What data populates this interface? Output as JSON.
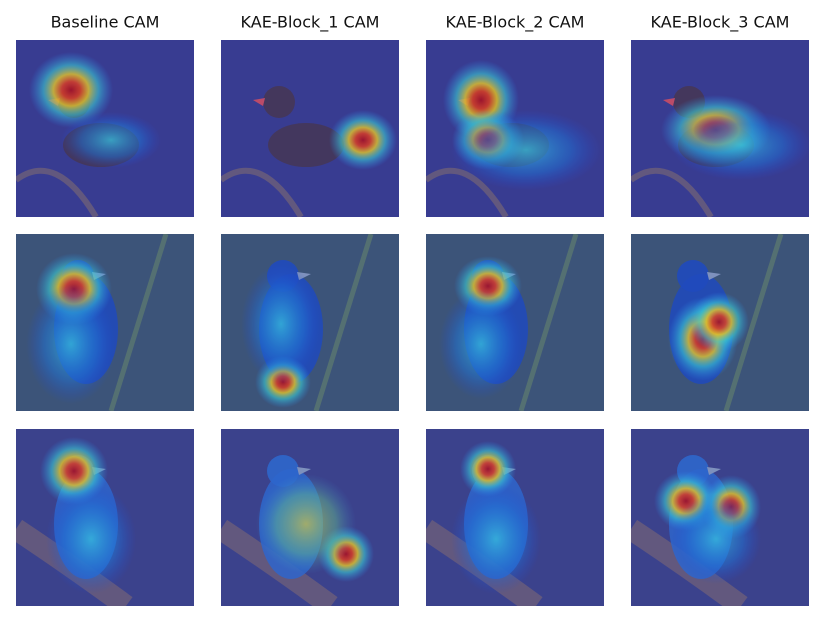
{
  "columns": [
    {
      "title": "Baseline CAM"
    },
    {
      "title": "KAE-Block_1 CAM"
    },
    {
      "title": "KAE-Block_2 CAM"
    },
    {
      "title": "KAE-Block_3 CAM"
    }
  ]
}
